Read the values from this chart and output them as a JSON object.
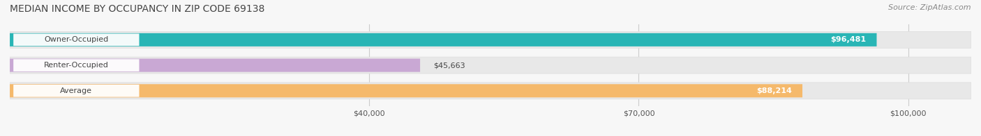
{
  "title": "MEDIAN INCOME BY OCCUPANCY IN ZIP CODE 69138",
  "source": "Source: ZipAtlas.com",
  "categories": [
    "Owner-Occupied",
    "Renter-Occupied",
    "Average"
  ],
  "values": [
    96481,
    45663,
    88214
  ],
  "bar_colors": [
    "#29b5b5",
    "#c9a8d4",
    "#f5b96b"
  ],
  "bar_track_color": "#e8e8e8",
  "value_labels": [
    "$96,481",
    "$45,663",
    "$88,214"
  ],
  "x_ticks": [
    40000,
    70000,
    100000
  ],
  "x_tick_labels": [
    "$40,000",
    "$70,000",
    "$100,000"
  ],
  "x_min": 0,
  "x_max": 107000,
  "background_color": "#f7f7f7",
  "title_fontsize": 10,
  "source_fontsize": 8,
  "label_fontsize": 8,
  "value_fontsize": 8
}
